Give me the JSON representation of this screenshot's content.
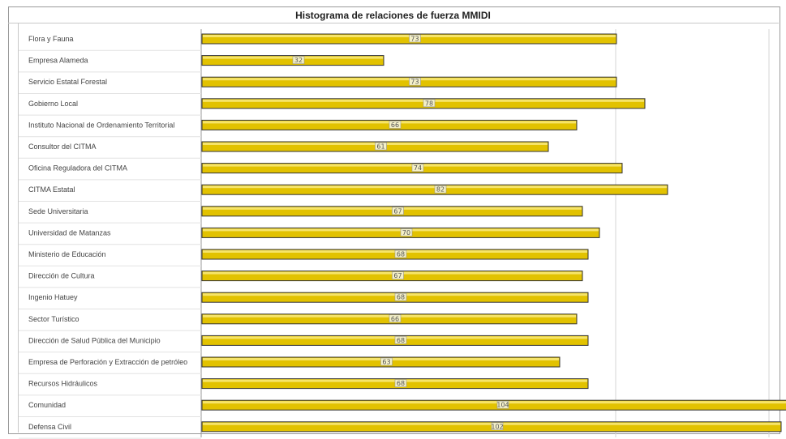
{
  "chart_data": {
    "type": "bar",
    "orientation": "horizontal",
    "title": "Histograma de relaciones de fuerza MMIDI",
    "xlabel": "",
    "ylabel": "",
    "xlim": [
      0,
      140
    ],
    "grid": true,
    "legend": "none",
    "bar_color": "#e2c200",
    "bar_outline": "#333333",
    "categories": [
      "Flora y Fauna",
      "Empresa Alameda",
      "Servicio Estatal Forestal",
      "Gobierno Local",
      "Instituto Nacional de Ordenamiento Territorial",
      "Consultor del CITMA",
      "Oficina Reguladora del CITMA",
      "CITMA Estatal",
      "Sede Universitaria",
      "Universidad de Matanzas",
      "Ministerio de Educación",
      "Dirección de Cultura",
      "Ingenio Hatuey",
      "Sector Turístico",
      "Dirección de Salud Pública del Municipio",
      "Empresa de Perforación y Extracción de petróleo",
      "Recursos Hidráulicos",
      "Comunidad",
      "Defensa Civil"
    ],
    "values": [
      73,
      32,
      73,
      78,
      66,
      61,
      74,
      82,
      67,
      70,
      68,
      67,
      68,
      66,
      68,
      63,
      68,
      104,
      102
    ],
    "data_labels": [
      "73",
      "32",
      "73",
      "78",
      "66",
      "61",
      "74",
      "82",
      "67",
      "70",
      "68",
      "67",
      "68",
      "66",
      "68",
      "63",
      "68",
      "104",
      "102"
    ]
  }
}
